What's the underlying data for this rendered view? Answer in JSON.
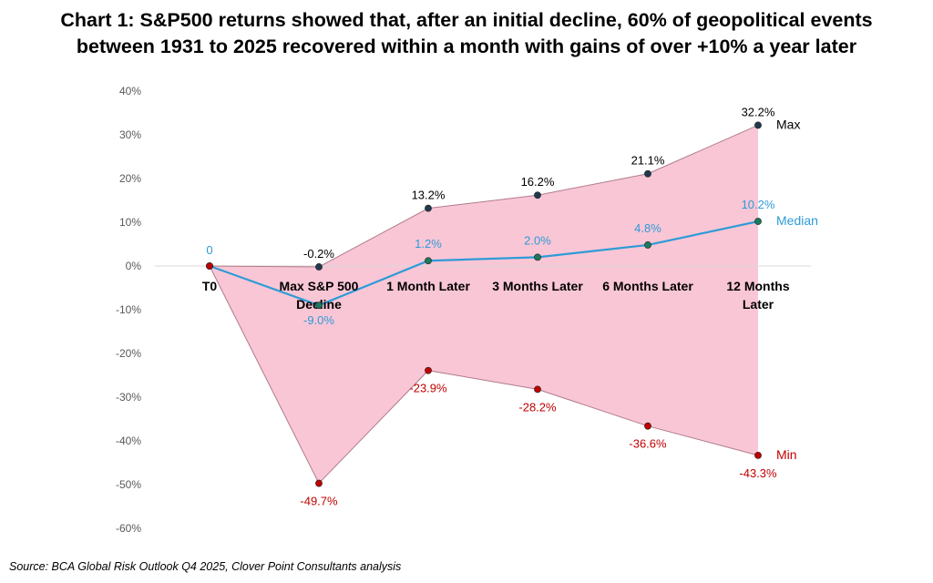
{
  "chart_data": {
    "type": "line",
    "title_lines": [
      "Chart 1: S&P500 returns showed that, after an initial decline, 60% of geopolitical events",
      "between 1931 to 2025 recovered within a month with gains of over +10% a year later"
    ],
    "categories": [
      [
        "T0"
      ],
      [
        "Max S&P 500",
        "Decline"
      ],
      [
        "1 Month Later"
      ],
      [
        "3 Months Later"
      ],
      [
        "6 Months Later"
      ],
      [
        "12 Months",
        "Later"
      ]
    ],
    "ylim": [
      -60,
      40
    ],
    "yticks": [
      40,
      30,
      20,
      10,
      0,
      -10,
      -20,
      -30,
      -40,
      -50,
      -60
    ],
    "ytick_labels": [
      "40%",
      "30%",
      "20%",
      "10%",
      "0%",
      "-10%",
      "-20%",
      "-30%",
      "-40%",
      "-50%",
      "-60%"
    ],
    "series": [
      {
        "name": "Max",
        "color": "#000000",
        "line_color": "#b07c8a",
        "marker_color": "#1f3a4d",
        "values": [
          0,
          -0.2,
          13.2,
          16.2,
          21.1,
          32.2
        ],
        "labels": [
          "",
          "-0.2%",
          "13.2%",
          "16.2%",
          "21.1%",
          "32.2%"
        ]
      },
      {
        "name": "Median",
        "color": "#2e9bd6",
        "line_color": "#2e9bd6",
        "marker_color": "#1a7a5e",
        "values": [
          0,
          -9.0,
          1.2,
          2.0,
          4.8,
          10.2
        ],
        "labels": [
          "0",
          "-9.0%",
          "1.2%",
          "2.0%",
          "4.8%",
          "10.2%"
        ]
      },
      {
        "name": "Min",
        "color": "#c00000",
        "line_color": "#b07c8a",
        "marker_color": "#c00000",
        "values": [
          0,
          -49.7,
          -23.9,
          -28.2,
          -36.6,
          -43.3
        ],
        "labels": [
          "",
          "-49.7%",
          "-23.9%",
          "-28.2%",
          "-36.6%",
          "-43.3%"
        ]
      }
    ],
    "band_fill": "#f9c6d6",
    "source": "Source: BCA Global Risk Outlook Q4 2025, Clover Point Consultants analysis"
  }
}
